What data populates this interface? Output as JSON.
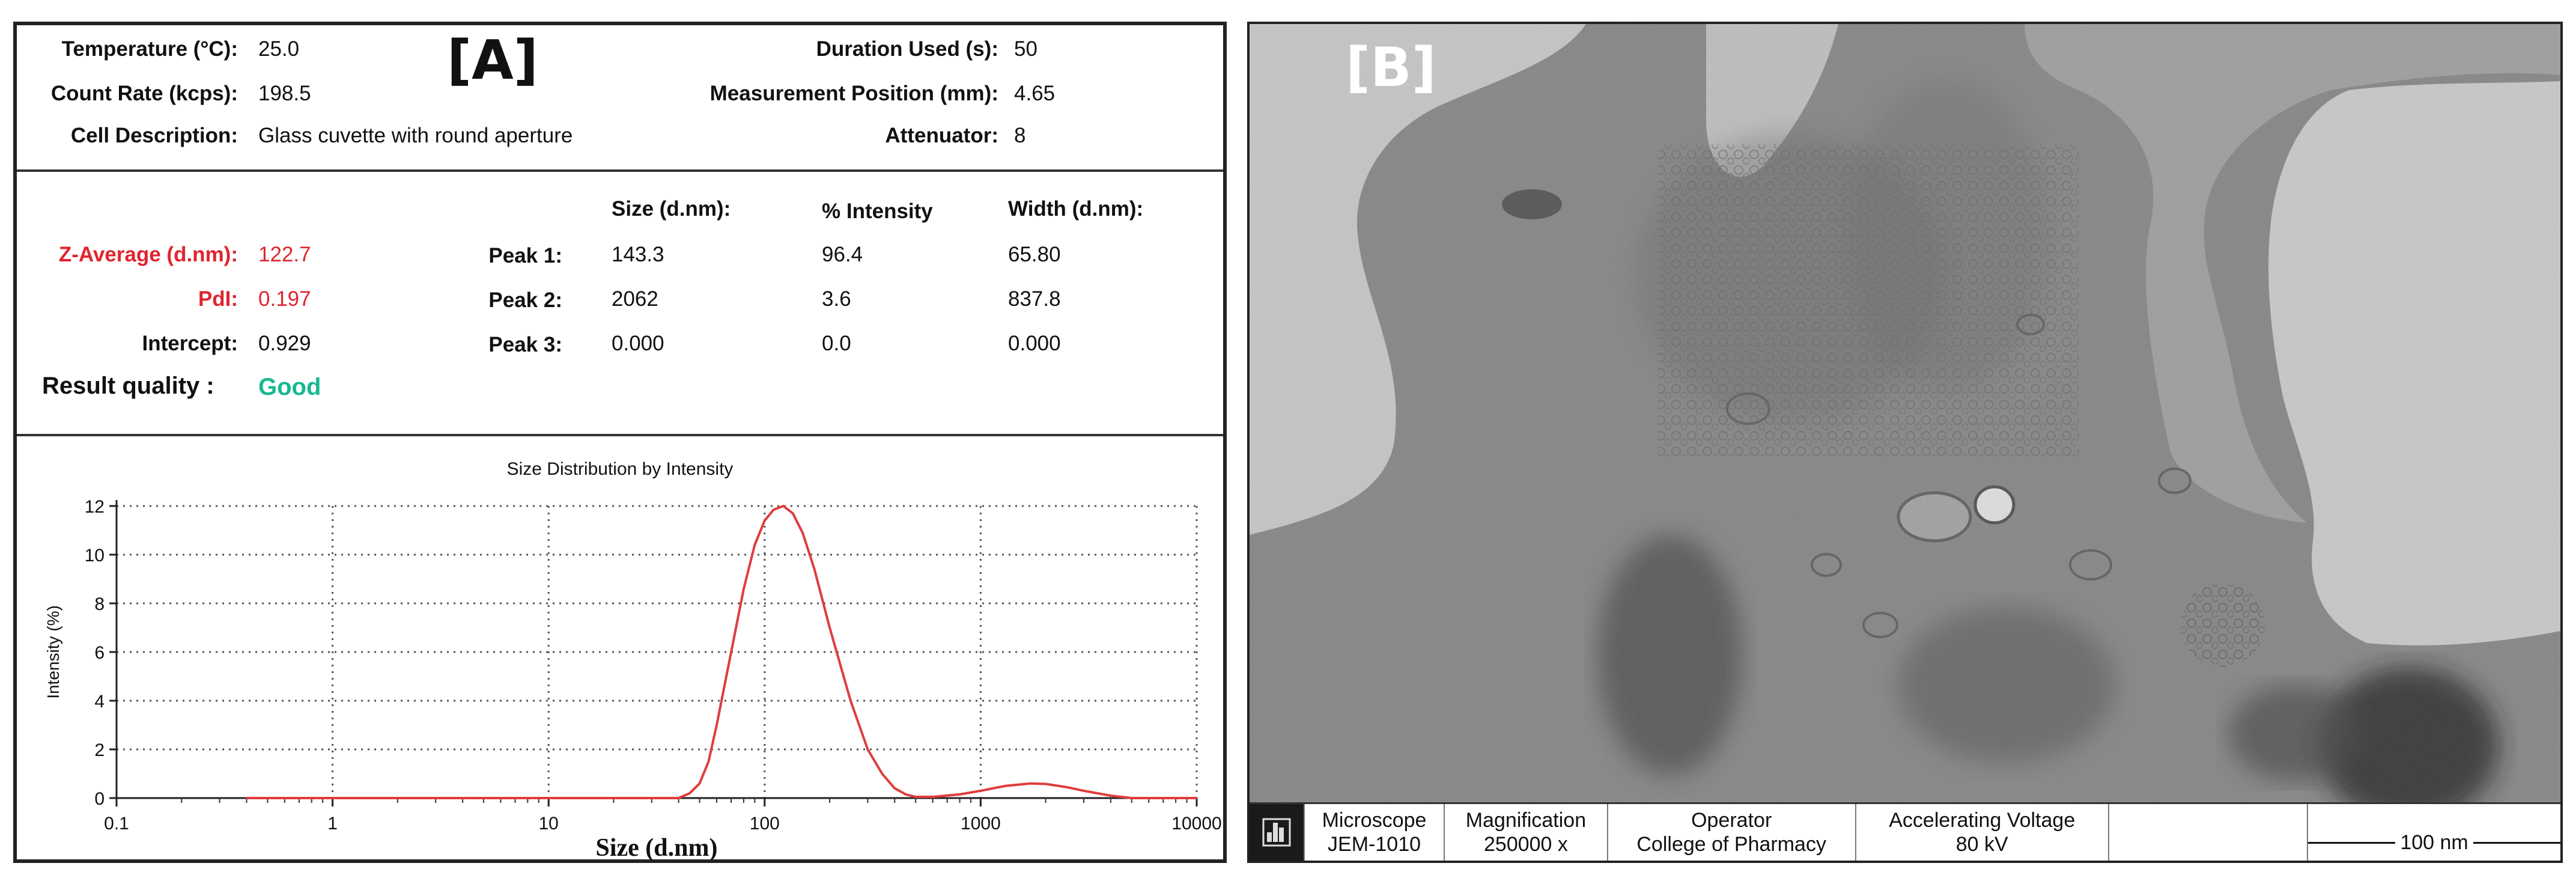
{
  "panel_a": {
    "tag": "[A]",
    "info": {
      "temperature_label": "Temperature (°C):",
      "temperature_value": "25.0",
      "count_rate_label": "Count Rate (kcps):",
      "count_rate_value": "198.5",
      "cell_label": "Cell Description:",
      "cell_value": "Glass cuvette with round aperture",
      "duration_label": "Duration Used (s):",
      "duration_value": "50",
      "position_label": "Measurement Position (mm):",
      "position_value": "4.65",
      "attenuator_label": "Attenuator:",
      "attenuator_value": "8"
    },
    "results": {
      "z_avg_label": "Z-Average (d.nm):",
      "z_avg_value": "122.7",
      "pdi_label": "PdI:",
      "pdi_value": "0.197",
      "intercept_label": "Intercept:",
      "intercept_value": "0.929",
      "quality_label": "Result quality :",
      "quality_value": "Good",
      "col_size": "Size (d.nm):",
      "col_intensity": "% Intensity",
      "col_width": "Width (d.nm):",
      "peaks": [
        {
          "label": "Peak 1:",
          "size": "143.3",
          "intensity": "96.4",
          "width": "65.80"
        },
        {
          "label": "Peak 2:",
          "size": "2062",
          "intensity": "3.6",
          "width": "837.8"
        },
        {
          "label": "Peak 3:",
          "size": "0.000",
          "intensity": "0.0",
          "width": "0.000"
        }
      ],
      "colors": {
        "highlight": "#e0242f",
        "good": "#16b890"
      }
    }
  },
  "chart_data": {
    "type": "line",
    "title": "Size Distribution by Intensity",
    "xlabel": "Size (d.nm)",
    "ylabel": "Intensity (%)",
    "x_scale": "log",
    "xlim": [
      0.1,
      10000
    ],
    "ylim": [
      0,
      12
    ],
    "x_ticks": [
      "0.1",
      "1",
      "10",
      "100",
      "1000",
      "10000"
    ],
    "y_ticks": [
      "0",
      "2",
      "4",
      "6",
      "8",
      "10",
      "12"
    ],
    "grid": true,
    "series": [
      {
        "color": "#e03c3c",
        "x": [
          0.4,
          1,
          10,
          40,
          45,
          50,
          55,
          60,
          70,
          80,
          90,
          100,
          110,
          122,
          135,
          150,
          170,
          200,
          250,
          300,
          350,
          400,
          450,
          500,
          600,
          800,
          1000,
          1300,
          1700,
          2000,
          2500,
          3000,
          4000,
          5000,
          10000
        ],
        "y": [
          0,
          0,
          0,
          0,
          0.2,
          0.6,
          1.5,
          3.0,
          6.0,
          8.6,
          10.4,
          11.4,
          11.85,
          12.0,
          11.7,
          10.9,
          9.4,
          7.0,
          4.0,
          2.0,
          1.0,
          0.4,
          0.15,
          0.05,
          0.05,
          0.15,
          0.3,
          0.5,
          0.6,
          0.58,
          0.45,
          0.3,
          0.1,
          0,
          0
        ]
      }
    ]
  },
  "panel_b": {
    "tag": "[B]",
    "infobar": {
      "microscope_label": "Microscope",
      "microscope_value": "JEM-1010",
      "magnification_label": "Magnification",
      "magnification_value": "250000 x",
      "operator_label": "Operator",
      "operator_value": "College of Pharmacy",
      "voltage_label": "Accelerating Voltage",
      "voltage_value": "80 kV",
      "scale_label": "100 nm",
      "logo_icon": "jeol-logo-icon"
    }
  }
}
